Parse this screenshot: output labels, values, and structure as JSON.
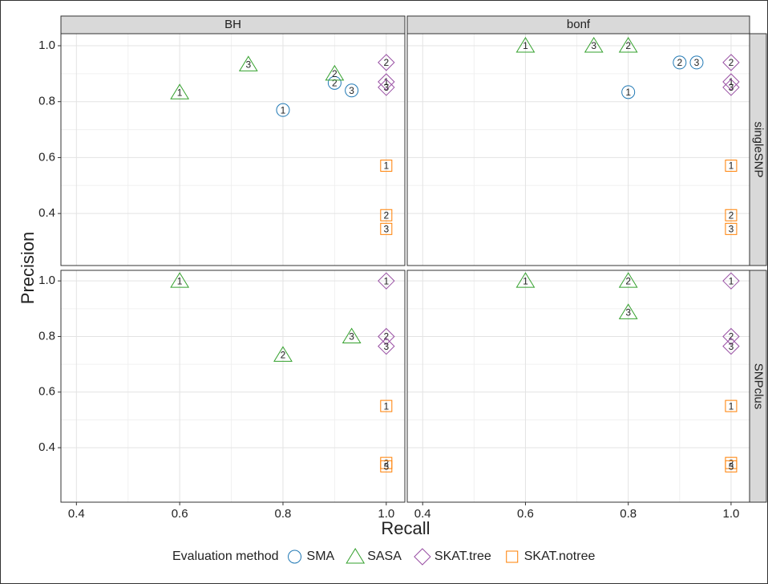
{
  "chart_data": [
    {
      "type": "scatter",
      "column": "BH",
      "y_label": "Precision",
      "x_label": "Recall",
      "legend_title": "Evaluation method",
      "grid": true,
      "xlim": [
        0.37,
        1.036
      ],
      "ylim": [
        0.214,
        1.043
      ],
      "yticks": [
        0.4,
        0.6,
        0.8,
        {
          "value": 1,
          "label": "1.0"
        }
      ],
      "series": [
        {
          "name": "SMA",
          "color": "#1f78b4",
          "marker": "circle",
          "x": [
            0.8,
            0.9,
            0.933
          ],
          "values": [
            0.77,
            0.867,
            0.84
          ],
          "labels": [
            "1",
            "2",
            "3"
          ]
        },
        {
          "name": "SASA",
          "color": "#33a02c",
          "marker": "triangle",
          "x": [
            0.6,
            0.9,
            0.733
          ],
          "values": [
            0.833,
            0.9,
            0.933
          ],
          "labels": [
            "1",
            "2",
            "3"
          ]
        },
        {
          "name": "SKAT.tree",
          "color": "#984ea3",
          "marker": "diamond",
          "x": [
            1,
            1,
            1
          ],
          "values": [
            0.871,
            0.94,
            0.851
          ],
          "labels": [
            "1",
            "2",
            "3"
          ]
        },
        {
          "name": "SKAT.notree",
          "color": "#ff7f00",
          "marker": "square",
          "x": [
            1,
            1,
            1
          ],
          "values": [
            0.571,
            0.394,
            0.345
          ],
          "labels": [
            "1",
            "2",
            "3"
          ]
        }
      ]
    },
    {
      "type": "scatter",
      "column": "bonf",
      "row": "singleSNP",
      "grid": true,
      "xlim": [
        0.37,
        1.036
      ],
      "ylim": [
        0.214,
        1.043
      ],
      "series": [
        {
          "name": "SMA",
          "color": "#1f78b4",
          "marker": "circle",
          "x": [
            0.8,
            0.9,
            0.933
          ],
          "values": [
            0.834,
            0.94,
            0.94
          ],
          "labels": [
            "1",
            "2",
            "3"
          ]
        },
        {
          "name": "SASA",
          "color": "#33a02c",
          "marker": "triangle",
          "x": [
            0.6,
            0.8,
            0.733
          ],
          "values": [
            1,
            1,
            1
          ],
          "labels": [
            "1",
            "2",
            "3"
          ]
        },
        {
          "name": "SKAT.tree",
          "color": "#984ea3",
          "marker": "diamond",
          "x": [
            1,
            1,
            1
          ],
          "values": [
            0.871,
            0.94,
            0.851
          ],
          "labels": [
            "1",
            "2",
            "3"
          ]
        },
        {
          "name": "SKAT.notree",
          "color": "#ff7f00",
          "marker": "square",
          "x": [
            1,
            1,
            1
          ],
          "values": [
            0.571,
            0.394,
            0.345
          ],
          "labels": [
            "1",
            "2",
            "3"
          ]
        }
      ]
    },
    {
      "type": "scatter",
      "grid": true,
      "xlim": [
        0.37,
        1.036
      ],
      "ylim": [
        0.204,
        1.038
      ],
      "xticks": [
        0.4,
        0.6,
        0.8,
        {
          "value": 1,
          "label": "1.0"
        }
      ],
      "yticks": [
        0.4,
        0.6,
        0.8,
        {
          "value": 1,
          "label": "1.0"
        }
      ],
      "series": [
        {
          "name": "SASA",
          "color": "#33a02c",
          "marker": "triangle",
          "x": [
            0.6,
            0.8,
            0.933
          ],
          "values": [
            1,
            0.734,
            0.8
          ],
          "labels": [
            "1",
            "2",
            "3"
          ]
        },
        {
          "name": "SKAT.tree",
          "color": "#984ea3",
          "marker": "diamond",
          "x": [
            1,
            1,
            1
          ],
          "values": [
            1,
            0.8,
            0.765
          ],
          "labels": [
            "1",
            "2",
            "3"
          ]
        },
        {
          "name": "SKAT.notree",
          "color": "#ff7f00",
          "marker": "square",
          "x": [
            1,
            1,
            1
          ],
          "values": [
            0.55,
            0.345,
            0.333
          ],
          "labels": [
            "1",
            "2",
            "3"
          ]
        }
      ]
    },
    {
      "type": "scatter",
      "row": "SNPclus",
      "grid": true,
      "xlim": [
        0.37,
        1.036
      ],
      "ylim": [
        0.204,
        1.038
      ],
      "xticks": [
        0.4,
        0.6,
        0.8,
        {
          "value": 1,
          "label": "1.0"
        }
      ],
      "series": [
        {
          "name": "SASA",
          "color": "#33a02c",
          "marker": "triangle",
          "x": [
            0.6,
            0.8,
            0.8
          ],
          "values": [
            1,
            1,
            0.887
          ],
          "labels": [
            "1",
            "2",
            "3"
          ]
        },
        {
          "name": "SKAT.tree",
          "color": "#984ea3",
          "marker": "diamond",
          "x": [
            1,
            1,
            1
          ],
          "values": [
            1,
            0.8,
            0.765
          ],
          "labels": [
            "1",
            "2",
            "3"
          ]
        },
        {
          "name": "SKAT.notree",
          "color": "#ff7f00",
          "marker": "square",
          "x": [
            1,
            1,
            1
          ],
          "values": [
            0.55,
            0.345,
            0.333
          ],
          "labels": [
            "1",
            "2",
            "3"
          ]
        }
      ]
    }
  ]
}
